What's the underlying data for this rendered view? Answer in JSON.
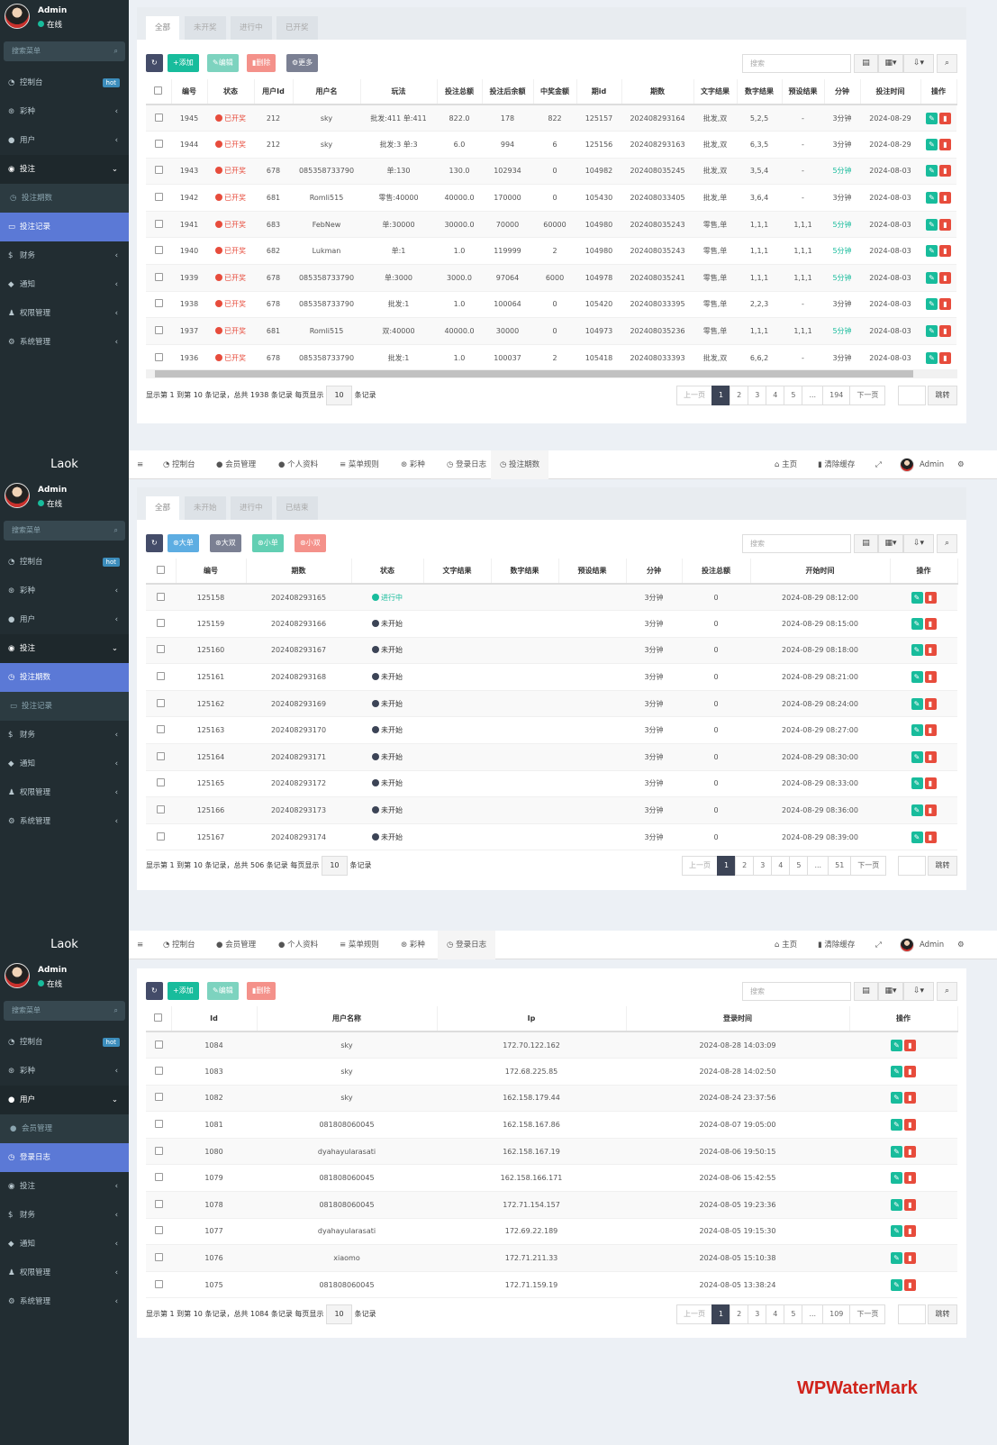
{
  "brand": "Laok",
  "user": {
    "name": "Admin",
    "status": "在线"
  },
  "menu_search_placeholder": "搜索菜单",
  "watermark": "WPWaterMark",
  "colors": {
    "sidebar": "#222d32",
    "active": "#5b79d6",
    "refresh": "#444c69",
    "add": "#18bc9c",
    "edit": "#7dd3bf",
    "delete": "#f4918a",
    "more": "#7b8093",
    "status_red": "#e74c3c",
    "status_green": "#18bc9c",
    "status_dark": "#3c4456"
  },
  "topbar": {
    "items": [
      {
        "icon": "dashboard-icon",
        "label": "控制台"
      },
      {
        "icon": "user-icon",
        "label": "会员管理"
      },
      {
        "icon": "user-icon",
        "label": "个人资料"
      },
      {
        "icon": "list-icon",
        "label": "菜单规则"
      },
      {
        "icon": "dice-icon",
        "label": "彩种"
      },
      {
        "icon": "clock-icon",
        "label": "登录日志"
      },
      {
        "icon": "clock-icon",
        "label": "投注期数"
      }
    ],
    "home": "主页",
    "clear_cache": "清除缓存",
    "user": "Admin"
  },
  "sidebars": [
    {
      "logo": false,
      "items": [
        {
          "icon": "dashboard-icon",
          "label": "控制台",
          "badge": "hot"
        },
        {
          "icon": "dice-icon",
          "label": "彩种",
          "arrow": "‹"
        },
        {
          "icon": "user-icon",
          "label": "用户",
          "arrow": "‹"
        },
        {
          "icon": "bet-icon",
          "label": "投注",
          "arrow": "⌄",
          "state": "open"
        },
        {
          "icon": "clock-icon",
          "label": "投注期数",
          "state": "sub"
        },
        {
          "icon": "card-icon",
          "label": "投注记录",
          "state": "active"
        },
        {
          "icon": "dollar-icon",
          "label": "财务",
          "arrow": "‹"
        },
        {
          "icon": "chat-icon",
          "label": "通知",
          "arrow": "‹"
        },
        {
          "icon": "group-icon",
          "label": "权限管理",
          "arrow": "‹"
        },
        {
          "icon": "gears-icon",
          "label": "系统管理",
          "arrow": "‹"
        }
      ]
    },
    {
      "logo": true,
      "items": [
        {
          "icon": "dashboard-icon",
          "label": "控制台",
          "badge": "hot"
        },
        {
          "icon": "dice-icon",
          "label": "彩种",
          "arrow": "‹"
        },
        {
          "icon": "user-icon",
          "label": "用户",
          "arrow": "‹"
        },
        {
          "icon": "bet-icon",
          "label": "投注",
          "arrow": "⌄",
          "state": "open"
        },
        {
          "icon": "clock-icon",
          "label": "投注期数",
          "state": "active"
        },
        {
          "icon": "card-icon",
          "label": "投注记录",
          "state": "sub"
        },
        {
          "icon": "dollar-icon",
          "label": "财务",
          "arrow": "‹"
        },
        {
          "icon": "chat-icon",
          "label": "通知",
          "arrow": "‹"
        },
        {
          "icon": "group-icon",
          "label": "权限管理",
          "arrow": "‹"
        },
        {
          "icon": "gears-icon",
          "label": "系统管理",
          "arrow": "‹"
        }
      ]
    },
    {
      "logo": true,
      "items": [
        {
          "icon": "dashboard-icon",
          "label": "控制台",
          "badge": "hot"
        },
        {
          "icon": "dice-icon",
          "label": "彩种",
          "arrow": "‹"
        },
        {
          "icon": "user-icon",
          "label": "用户",
          "arrow": "⌄",
          "state": "open"
        },
        {
          "icon": "user-icon",
          "label": "会员管理",
          "state": "sub"
        },
        {
          "icon": "clock-icon",
          "label": "登录日志",
          "state": "active"
        },
        {
          "icon": "bet-icon",
          "label": "投注",
          "arrow": "‹"
        },
        {
          "icon": "dollar-icon",
          "label": "财务",
          "arrow": "‹"
        },
        {
          "icon": "chat-icon",
          "label": "通知",
          "arrow": "‹"
        },
        {
          "icon": "group-icon",
          "label": "权限管理",
          "arrow": "‹"
        },
        {
          "icon": "gears-icon",
          "label": "系统管理",
          "arrow": "‹"
        }
      ]
    }
  ],
  "panels": [
    {
      "tabs": [
        "全部",
        "未开奖",
        "进行中",
        "已开奖"
      ],
      "buttons": [
        {
          "icon": "refresh-icon",
          "label": "",
          "color": "#444c69"
        },
        {
          "icon": "plus-icon",
          "label": "添加",
          "color": "#18bc9c"
        },
        {
          "icon": "pencil-icon",
          "label": "编辑",
          "color": "#7dd3bf"
        },
        {
          "icon": "trash-icon",
          "label": "删除",
          "color": "#f4918a"
        },
        {
          "icon": "gear-icon",
          "label": "更多",
          "color": "#7b8093"
        }
      ],
      "search_placeholder": "搜索",
      "columns": [
        "编号",
        "状态",
        "用户Id",
        "用户名",
        "玩法",
        "投注总额",
        "投注后余额",
        "中奖金额",
        "期id",
        "期数",
        "文字结果",
        "数字结果",
        "预设结果",
        "分钟",
        "投注时间",
        "操作"
      ],
      "rows": [
        [
          "1945",
          "已开奖",
          "212",
          "sky",
          "批发:411 单:411",
          "822.0",
          "178",
          "822",
          "125157",
          "202408293164",
          "批发,双",
          "5,2,5",
          "-",
          "3分钟",
          "2024-08-29"
        ],
        [
          "1944",
          "已开奖",
          "212",
          "sky",
          "批发:3 单:3",
          "6.0",
          "994",
          "6",
          "125156",
          "202408293163",
          "批发,双",
          "6,3,5",
          "-",
          "3分钟",
          "2024-08-29"
        ],
        [
          "1943",
          "已开奖",
          "678",
          "085358733790",
          "单:130",
          "130.0",
          "102934",
          "0",
          "104982",
          "202408035245",
          "批发,双",
          "3,5,4",
          "-",
          "5分钟",
          "2024-08-03"
        ],
        [
          "1942",
          "已开奖",
          "681",
          "Romli515",
          "零售:40000",
          "40000.0",
          "170000",
          "0",
          "105430",
          "202408033405",
          "批发,单",
          "3,6,4",
          "-",
          "3分钟",
          "2024-08-03"
        ],
        [
          "1941",
          "已开奖",
          "683",
          "FebNew",
          "单:30000",
          "30000.0",
          "70000",
          "60000",
          "104980",
          "202408035243",
          "零售,单",
          "1,1,1",
          "1,1,1",
          "5分钟",
          "2024-08-03"
        ],
        [
          "1940",
          "已开奖",
          "682",
          "Lukman",
          "单:1",
          "1.0",
          "119999",
          "2",
          "104980",
          "202408035243",
          "零售,单",
          "1,1,1",
          "1,1,1",
          "5分钟",
          "2024-08-03"
        ],
        [
          "1939",
          "已开奖",
          "678",
          "085358733790",
          "单:3000",
          "3000.0",
          "97064",
          "6000",
          "104978",
          "202408035241",
          "零售,单",
          "1,1,1",
          "1,1,1",
          "5分钟",
          "2024-08-03"
        ],
        [
          "1938",
          "已开奖",
          "678",
          "085358733790",
          "批发:1",
          "1.0",
          "100064",
          "0",
          "105420",
          "202408033395",
          "零售,单",
          "2,2,3",
          "-",
          "3分钟",
          "2024-08-03"
        ],
        [
          "1937",
          "已开奖",
          "681",
          "Romli515",
          "双:40000",
          "40000.0",
          "30000",
          "0",
          "104973",
          "202408035236",
          "零售,单",
          "1,1,1",
          "1,1,1",
          "5分钟",
          "2024-08-03"
        ],
        [
          "1936",
          "已开奖",
          "678",
          "085358733790",
          "批发:1",
          "1.0",
          "100037",
          "2",
          "105418",
          "202408033393",
          "批发,双",
          "6,6,2",
          "-",
          "3分钟",
          "2024-08-03"
        ]
      ],
      "pagination": {
        "info_prefix": "显示第 1 到第 10 条记录，总共 1938 条记录 每页显示",
        "page_size": "10",
        "info_suffix": "条记录",
        "prev": "上一页",
        "pages": [
          "1",
          "2",
          "3",
          "4",
          "5",
          "...",
          "194"
        ],
        "current": "1",
        "next": "下一页",
        "jump": "跳转"
      }
    },
    {
      "tabs": [
        "全部",
        "未开始",
        "进行中",
        "已结束"
      ],
      "buttons": [
        {
          "icon": "refresh-icon",
          "label": "",
          "color": "#444c69"
        },
        {
          "icon": "dice-icon",
          "label": "大单",
          "color": "#5dade2"
        },
        {
          "icon": "dice-icon",
          "label": "大双",
          "color": "#7b8093"
        },
        {
          "icon": "dice-icon",
          "label": "小单",
          "color": "#62cfb3"
        },
        {
          "icon": "dice-icon",
          "label": "小双",
          "color": "#f4918a"
        }
      ],
      "search_placeholder": "搜索",
      "columns": [
        "编号",
        "期数",
        "状态",
        "文字结果",
        "数字结果",
        "预设结果",
        "分钟",
        "投注总额",
        "开始时间",
        "操作"
      ],
      "rows": [
        [
          "125158",
          "202408293165",
          "进行中",
          "",
          "",
          "",
          "3分钟",
          "0",
          "2024-08-29 08:12:00"
        ],
        [
          "125159",
          "202408293166",
          "未开始",
          "",
          "",
          "",
          "3分钟",
          "0",
          "2024-08-29 08:15:00"
        ],
        [
          "125160",
          "202408293167",
          "未开始",
          "",
          "",
          "",
          "3分钟",
          "0",
          "2024-08-29 08:18:00"
        ],
        [
          "125161",
          "202408293168",
          "未开始",
          "",
          "",
          "",
          "3分钟",
          "0",
          "2024-08-29 08:21:00"
        ],
        [
          "125162",
          "202408293169",
          "未开始",
          "",
          "",
          "",
          "3分钟",
          "0",
          "2024-08-29 08:24:00"
        ],
        [
          "125163",
          "202408293170",
          "未开始",
          "",
          "",
          "",
          "3分钟",
          "0",
          "2024-08-29 08:27:00"
        ],
        [
          "125164",
          "202408293171",
          "未开始",
          "",
          "",
          "",
          "3分钟",
          "0",
          "2024-08-29 08:30:00"
        ],
        [
          "125165",
          "202408293172",
          "未开始",
          "",
          "",
          "",
          "3分钟",
          "0",
          "2024-08-29 08:33:00"
        ],
        [
          "125166",
          "202408293173",
          "未开始",
          "",
          "",
          "",
          "3分钟",
          "0",
          "2024-08-29 08:36:00"
        ],
        [
          "125167",
          "202408293174",
          "未开始",
          "",
          "",
          "",
          "3分钟",
          "0",
          "2024-08-29 08:39:00"
        ]
      ],
      "pagination": {
        "info_prefix": "显示第 1 到第 10 条记录，总共 506 条记录 每页显示",
        "page_size": "10",
        "info_suffix": "条记录",
        "prev": "上一页",
        "pages": [
          "1",
          "2",
          "3",
          "4",
          "5",
          "...",
          "51"
        ],
        "current": "1",
        "next": "下一页",
        "jump": "跳转"
      }
    },
    {
      "tabs": [],
      "buttons": [
        {
          "icon": "refresh-icon",
          "label": "",
          "color": "#444c69"
        },
        {
          "icon": "plus-icon",
          "label": "添加",
          "color": "#18bc9c"
        },
        {
          "icon": "pencil-icon",
          "label": "编辑",
          "color": "#7dd3bf"
        },
        {
          "icon": "trash-icon",
          "label": "删除",
          "color": "#f4918a"
        }
      ],
      "search_placeholder": "搜索",
      "columns": [
        "Id",
        "用户名称",
        "Ip",
        "登录时间",
        "操作"
      ],
      "rows": [
        [
          "1084",
          "sky",
          "172.70.122.162",
          "2024-08-28 14:03:09"
        ],
        [
          "1083",
          "sky",
          "172.68.225.85",
          "2024-08-28 14:02:50"
        ],
        [
          "1082",
          "sky",
          "162.158.179.44",
          "2024-08-24 23:37:56"
        ],
        [
          "1081",
          "081808060045",
          "162.158.167.86",
          "2024-08-07 19:05:00"
        ],
        [
          "1080",
          "dyahayularasati",
          "162.158.167.19",
          "2024-08-06 19:50:15"
        ],
        [
          "1079",
          "081808060045",
          "162.158.166.171",
          "2024-08-06 15:42:55"
        ],
        [
          "1078",
          "081808060045",
          "172.71.154.157",
          "2024-08-05 19:23:36"
        ],
        [
          "1077",
          "dyahayularasati",
          "172.69.22.189",
          "2024-08-05 19:15:30"
        ],
        [
          "1076",
          "xiaomo",
          "172.71.211.33",
          "2024-08-05 15:10:38"
        ],
        [
          "1075",
          "081808060045",
          "172.71.159.19",
          "2024-08-05 13:38:24"
        ]
      ],
      "pagination": {
        "info_prefix": "显示第 1 到第 10 条记录，总共 1084 条记录 每页显示",
        "page_size": "10",
        "info_suffix": "条记录",
        "prev": "上一页",
        "pages": [
          "1",
          "2",
          "3",
          "4",
          "5",
          "...",
          "109"
        ],
        "current": "1",
        "next": "下一页",
        "jump": "跳转"
      }
    }
  ]
}
